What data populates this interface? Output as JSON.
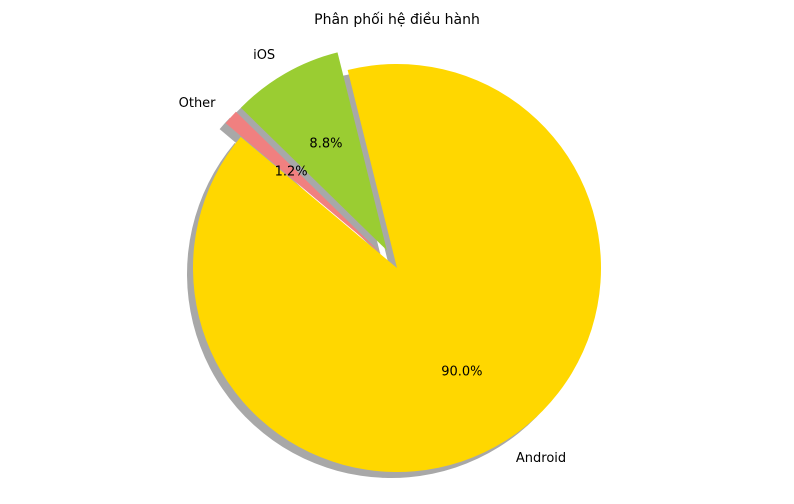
{
  "chart_data": {
    "type": "pie",
    "title": "Phân phối hệ điều hành",
    "start_angle_deg": 140,
    "direction": "counterclockwise",
    "shadow": true,
    "slices": [
      {
        "label": "Android",
        "value": 90.0,
        "pct_label": "90.0%",
        "color": "#FFD700",
        "explode": 0.0
      },
      {
        "label": "iOS",
        "value": 8.8,
        "pct_label": "8.8%",
        "color": "#9ACD32",
        "explode": 0.1
      },
      {
        "label": "Other",
        "value": 1.2,
        "pct_label": "1.2%",
        "color": "#F08080",
        "explode": 0.1
      }
    ]
  }
}
